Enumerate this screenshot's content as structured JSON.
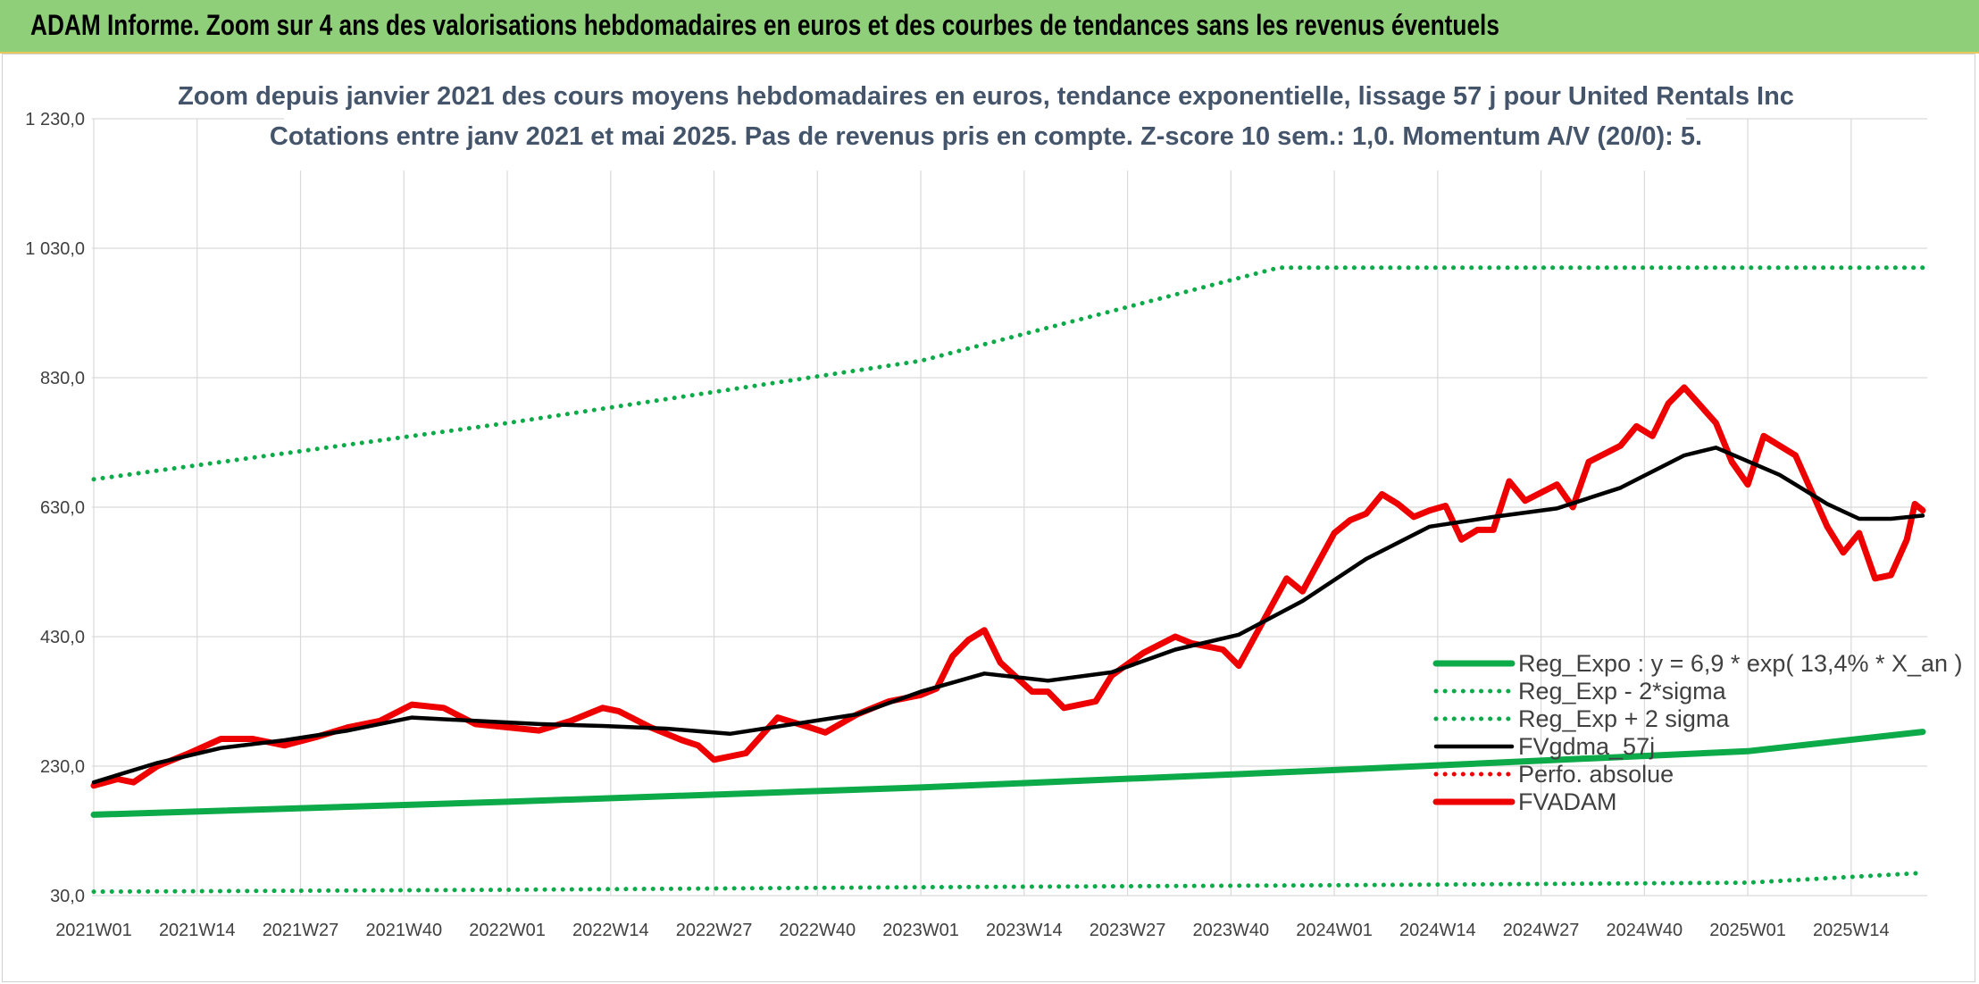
{
  "banner": {
    "title": "ADAM Informe. Zoom sur 4 ans des valorisations hebdomadaires en euros et des courbes de tendances sans les revenus éventuels"
  },
  "colors": {
    "banner_bg": "#8fcf79",
    "green": "#0daa4a",
    "black": "#000000",
    "red": "#ee0000",
    "grid": "#d9d9d9",
    "title_text": "#44546a"
  },
  "chart_data": {
    "type": "line",
    "title": "Zoom depuis janvier 2021 des cours moyens hebdomadaires en euros, tendance exponentielle, lissage 57 j pour United Rentals Inc",
    "subtitle": "Cotations entre janv 2021 et mai 2025. Pas de revenus pris en compte. Z-score 10 sem.: 1,0. Momentum A/V (20/0): 5.",
    "y_ticks": [
      "30,0",
      "230,0",
      "430,0",
      "630,0",
      "830,0",
      "1 030,0",
      "1 230,0"
    ],
    "ylim": [
      30,
      1230
    ],
    "x_ticks": [
      {
        "week": 0,
        "label": "2021W01"
      },
      {
        "week": 13,
        "label": "2021W14"
      },
      {
        "week": 26,
        "label": "2021W27"
      },
      {
        "week": 39,
        "label": "2021W40"
      },
      {
        "week": 52,
        "label": "2022W01"
      },
      {
        "week": 65,
        "label": "2022W14"
      },
      {
        "week": 78,
        "label": "2022W27"
      },
      {
        "week": 91,
        "label": "2022W40"
      },
      {
        "week": 104,
        "label": "2023W01"
      },
      {
        "week": 117,
        "label": "2023W14"
      },
      {
        "week": 130,
        "label": "2023W27"
      },
      {
        "week": 143,
        "label": "2023W40"
      },
      {
        "week": 156,
        "label": "2024W01"
      },
      {
        "week": 169,
        "label": "2024W14"
      },
      {
        "week": 182,
        "label": "2024W27"
      },
      {
        "week": 195,
        "label": "2024W40"
      },
      {
        "week": 208,
        "label": "2025W01"
      },
      {
        "week": 221,
        "label": "2025W14"
      }
    ],
    "x_last_week": 230,
    "grid": true,
    "legend_position": "bottom-right",
    "series": [
      {
        "name": "Reg_Expo : y = 6,9 * exp( 13,4% *  X_an )",
        "style": "solid-thick",
        "color": "#0daa4a",
        "points": [
          [
            0,
            155
          ],
          [
            52,
            175
          ],
          [
            104,
            197
          ],
          [
            156,
            224
          ],
          [
            208,
            253
          ],
          [
            230,
            283
          ]
        ]
      },
      {
        "name": "Reg_Exp - 2*sigma",
        "style": "dotted",
        "color": "#0daa4a",
        "points": [
          [
            0,
            36
          ],
          [
            52,
            39
          ],
          [
            104,
            43
          ],
          [
            156,
            46
          ],
          [
            208,
            50
          ],
          [
            230,
            65
          ]
        ]
      },
      {
        "name": "Reg_Exp + 2 sigma",
        "style": "dotted",
        "color": "#0daa4a",
        "points": [
          [
            0,
            673
          ],
          [
            52,
            760
          ],
          [
            104,
            856
          ],
          [
            149,
            1000
          ],
          [
            230,
            1000
          ]
        ]
      },
      {
        "name": "FVgdma_57j",
        "style": "solid",
        "color": "#000000",
        "points": [
          [
            0,
            205
          ],
          [
            8,
            235
          ],
          [
            16,
            258
          ],
          [
            24,
            270
          ],
          [
            32,
            285
          ],
          [
            40,
            305
          ],
          [
            48,
            300
          ],
          [
            56,
            295
          ],
          [
            64,
            292
          ],
          [
            72,
            288
          ],
          [
            80,
            280
          ],
          [
            88,
            295
          ],
          [
            96,
            310
          ],
          [
            104,
            345
          ],
          [
            112,
            373
          ],
          [
            120,
            362
          ],
          [
            128,
            375
          ],
          [
            136,
            410
          ],
          [
            144,
            433
          ],
          [
            152,
            485
          ],
          [
            160,
            550
          ],
          [
            168,
            600
          ],
          [
            176,
            615
          ],
          [
            184,
            628
          ],
          [
            192,
            660
          ],
          [
            200,
            710
          ],
          [
            204,
            722
          ],
          [
            212,
            680
          ],
          [
            218,
            635
          ],
          [
            222,
            612
          ],
          [
            226,
            612
          ],
          [
            230,
            617
          ]
        ]
      },
      {
        "name": "Perfo. absolue",
        "style": "dotted",
        "color": "#ee0000",
        "points": []
      },
      {
        "name": "FVADAM",
        "style": "solid-thick",
        "color": "#ee0000",
        "points": [
          [
            0,
            200
          ],
          [
            3,
            210
          ],
          [
            5,
            205
          ],
          [
            8,
            230
          ],
          [
            12,
            250
          ],
          [
            16,
            272
          ],
          [
            20,
            272
          ],
          [
            24,
            262
          ],
          [
            28,
            275
          ],
          [
            32,
            290
          ],
          [
            36,
            300
          ],
          [
            40,
            325
          ],
          [
            44,
            320
          ],
          [
            48,
            295
          ],
          [
            52,
            290
          ],
          [
            56,
            285
          ],
          [
            60,
            300
          ],
          [
            64,
            320
          ],
          [
            66,
            315
          ],
          [
            70,
            290
          ],
          [
            74,
            270
          ],
          [
            76,
            262
          ],
          [
            78,
            240
          ],
          [
            82,
            250
          ],
          [
            86,
            305
          ],
          [
            90,
            290
          ],
          [
            92,
            282
          ],
          [
            96,
            310
          ],
          [
            100,
            330
          ],
          [
            104,
            340
          ],
          [
            106,
            350
          ],
          [
            108,
            400
          ],
          [
            110,
            425
          ],
          [
            112,
            440
          ],
          [
            114,
            390
          ],
          [
            118,
            345
          ],
          [
            120,
            345
          ],
          [
            122,
            320
          ],
          [
            126,
            330
          ],
          [
            128,
            370
          ],
          [
            132,
            405
          ],
          [
            136,
            430
          ],
          [
            138,
            420
          ],
          [
            142,
            410
          ],
          [
            144,
            385
          ],
          [
            146,
            430
          ],
          [
            150,
            520
          ],
          [
            152,
            500
          ],
          [
            154,
            545
          ],
          [
            156,
            590
          ],
          [
            158,
            610
          ],
          [
            160,
            620
          ],
          [
            162,
            650
          ],
          [
            164,
            635
          ],
          [
            166,
            615
          ],
          [
            168,
            625
          ],
          [
            170,
            632
          ],
          [
            172,
            580
          ],
          [
            174,
            595
          ],
          [
            176,
            595
          ],
          [
            178,
            670
          ],
          [
            180,
            640
          ],
          [
            184,
            665
          ],
          [
            186,
            630
          ],
          [
            188,
            700
          ],
          [
            192,
            725
          ],
          [
            194,
            755
          ],
          [
            196,
            740
          ],
          [
            198,
            790
          ],
          [
            200,
            815
          ],
          [
            204,
            760
          ],
          [
            206,
            700
          ],
          [
            208,
            665
          ],
          [
            210,
            740
          ],
          [
            214,
            710
          ],
          [
            218,
            600
          ],
          [
            220,
            560
          ],
          [
            222,
            590
          ],
          [
            224,
            520
          ],
          [
            226,
            525
          ],
          [
            228,
            580
          ],
          [
            229,
            635
          ],
          [
            230,
            625
          ]
        ]
      }
    ]
  }
}
